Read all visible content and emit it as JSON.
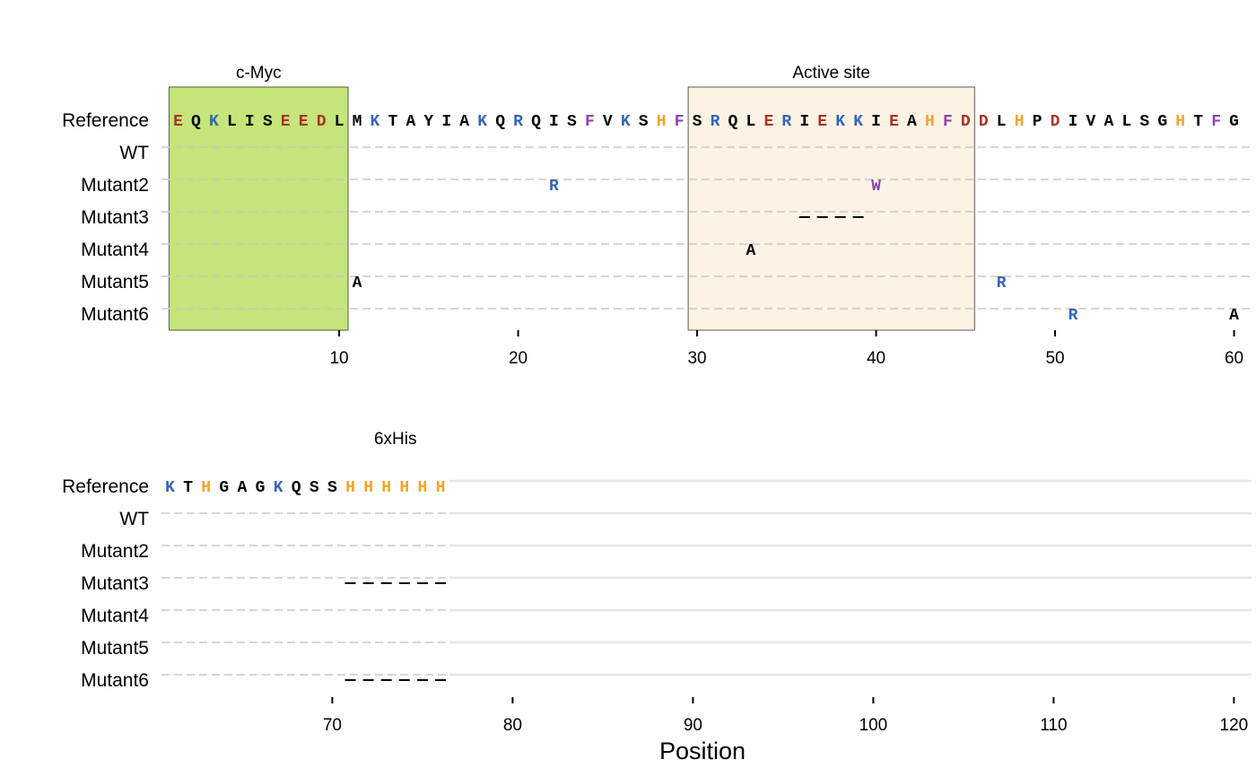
{
  "colors": {
    "acidic": "#a9332a",
    "basic": "#3465b5",
    "aromatic": "#8e44ad",
    "histidine": "#f0a52b",
    "other": "#000000",
    "region_cmyc": "#c6e57a",
    "region_active": "#fdf3e4",
    "guide_line": "#c8c8c8",
    "axis": "#000000"
  },
  "chart_data": {
    "type": "sequence-alignment",
    "xlabel": "Position",
    "row_labels": [
      "Reference",
      "WT",
      "Mutant2",
      "Mutant3",
      "Mutant4",
      "Mutant5",
      "Mutant6"
    ],
    "reference_sequence": "EQKLISEEDLMKTAYIAKQRQISFVKSHFSRQLERIEKKIEAHFDDLHPDIVALSGHTFGKTHGAGKQSSHHHHHH",
    "panels": [
      {
        "xlim": [
          1,
          60
        ],
        "ticks": [
          10,
          20,
          30,
          40,
          50,
          60
        ],
        "tick_labels": [
          "10",
          "20",
          "30",
          "40",
          "50",
          "60"
        ],
        "regions": [
          {
            "label": "c-Myc",
            "start": 1,
            "end": 10,
            "color": "#c6e57a"
          },
          {
            "label": "Active site",
            "start": 30,
            "end": 45,
            "color": "#fdf3e4"
          }
        ]
      },
      {
        "xlim": [
          61,
          120
        ],
        "ticks": [
          70,
          80,
          90,
          100,
          110,
          120
        ],
        "tick_labels": [
          "70",
          "80",
          "90",
          "100",
          "110",
          "120"
        ],
        "regions": [
          {
            "label": "6xHis",
            "start": 71,
            "end": 76
          }
        ]
      }
    ],
    "variants": [
      {
        "row": "Mutant2",
        "position": 22,
        "residue": "R"
      },
      {
        "row": "Mutant2",
        "position": 40,
        "residue": "W"
      },
      {
        "row": "Mutant3",
        "position": 36,
        "residue": "-"
      },
      {
        "row": "Mutant3",
        "position": 37,
        "residue": "-"
      },
      {
        "row": "Mutant3",
        "position": 38,
        "residue": "-"
      },
      {
        "row": "Mutant3",
        "position": 39,
        "residue": "-"
      },
      {
        "row": "Mutant3",
        "position": 71,
        "residue": "-"
      },
      {
        "row": "Mutant3",
        "position": 72,
        "residue": "-"
      },
      {
        "row": "Mutant3",
        "position": 73,
        "residue": "-"
      },
      {
        "row": "Mutant3",
        "position": 74,
        "residue": "-"
      },
      {
        "row": "Mutant3",
        "position": 75,
        "residue": "-"
      },
      {
        "row": "Mutant3",
        "position": 76,
        "residue": "-"
      },
      {
        "row": "Mutant4",
        "position": 33,
        "residue": "A"
      },
      {
        "row": "Mutant5",
        "position": 11,
        "residue": "A"
      },
      {
        "row": "Mutant5",
        "position": 47,
        "residue": "R"
      },
      {
        "row": "Mutant6",
        "position": 51,
        "residue": "R"
      },
      {
        "row": "Mutant6",
        "position": 60,
        "residue": "A"
      },
      {
        "row": "Mutant6",
        "position": 71,
        "residue": "-"
      },
      {
        "row": "Mutant6",
        "position": 72,
        "residue": "-"
      },
      {
        "row": "Mutant6",
        "position": 73,
        "residue": "-"
      },
      {
        "row": "Mutant6",
        "position": 74,
        "residue": "-"
      },
      {
        "row": "Mutant6",
        "position": 75,
        "residue": "-"
      },
      {
        "row": "Mutant6",
        "position": 76,
        "residue": "-"
      }
    ]
  }
}
